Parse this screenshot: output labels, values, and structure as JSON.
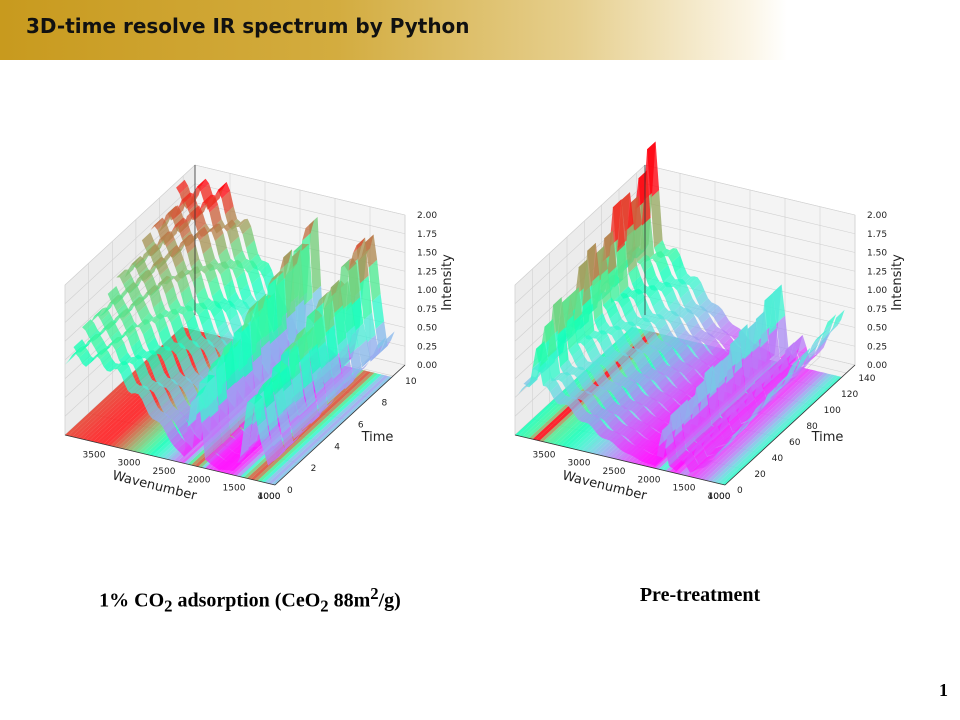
{
  "slide": {
    "title": "3D-time resolve IR spectrum by Python",
    "page_number": "1",
    "captions": {
      "left": {
        "pre": "1% CO",
        "sub1": "2",
        "mid": " adsorption (CeO",
        "sub2": "2",
        "post1": " 88m",
        "sup": "2",
        "post2": "/g)"
      },
      "right": "Pre-treatment"
    }
  },
  "colors": {
    "title_gradient_start": "#c89a1e",
    "title_gradient_end": "#ffffff",
    "colormap": "rainbow"
  },
  "chart_data": [
    {
      "type": "surface3d",
      "xlabel": "Wavenumber",
      "ylabel": "Time",
      "zlabel": "Intensity",
      "x_ticks": [
        "4000",
        "3500",
        "3000",
        "2500",
        "2000",
        "1500",
        "1000"
      ],
      "y_ticks": [
        "0",
        "2",
        "4",
        "6",
        "8",
        "10"
      ],
      "z_ticks": [
        "0.00",
        "0.25",
        "0.50",
        "0.75",
        "1.00",
        "1.25",
        "1.50",
        "1.75",
        "2.00"
      ],
      "xlim": [
        4000,
        1000
      ],
      "ylim": [
        0,
        11
      ],
      "zlim": [
        0,
        2
      ],
      "colormap": "rainbow",
      "grid": true,
      "surface_profile": {
        "wavenumber": [
          4000,
          3800,
          3600,
          3400,
          3200,
          3000,
          2800,
          2600,
          2400,
          2300,
          2200,
          2100,
          2000,
          1800,
          1600,
          1500,
          1400,
          1300,
          1200,
          1100,
          1000
        ],
        "intensity": [
          1.85,
          1.9,
          1.95,
          1.95,
          1.7,
          1.4,
          1.05,
          0.7,
          0.3,
          0.15,
          1.6,
          1.85,
          0.2,
          0.05,
          0.1,
          0.5,
          1.7,
          1.85,
          1.0,
          0.4,
          0.6
        ]
      }
    },
    {
      "type": "surface3d",
      "xlabel": "Wavenumber",
      "ylabel": "Time",
      "zlabel": "Intensity",
      "x_ticks": [
        "4000",
        "3500",
        "3000",
        "2500",
        "2000",
        "1500",
        "1000"
      ],
      "y_ticks": [
        "0",
        "20",
        "40",
        "60",
        "80",
        "100",
        "120",
        "140"
      ],
      "z_ticks": [
        "0.00",
        "0.25",
        "0.50",
        "0.75",
        "1.00",
        "1.25",
        "1.50",
        "1.75",
        "2.00"
      ],
      "xlim": [
        4000,
        1000
      ],
      "ylim": [
        0,
        150
      ],
      "zlim": [
        0,
        2
      ],
      "colormap": "rainbow",
      "grid": true,
      "surface_profile": {
        "wavenumber": [
          4000,
          3800,
          3700,
          3600,
          3400,
          3200,
          3000,
          2800,
          2600,
          2400,
          2200,
          2000,
          1900,
          1800,
          1700,
          1600,
          1500,
          1400,
          1300,
          1200,
          1000
        ],
        "intensity": [
          1.0,
          1.2,
          2.4,
          1.3,
          1.1,
          0.9,
          0.7,
          0.5,
          0.35,
          0.2,
          0.1,
          0.05,
          1.0,
          0.15,
          0.05,
          0.4,
          0.1,
          0.2,
          0.3,
          0.5,
          0.9
        ]
      }
    }
  ]
}
